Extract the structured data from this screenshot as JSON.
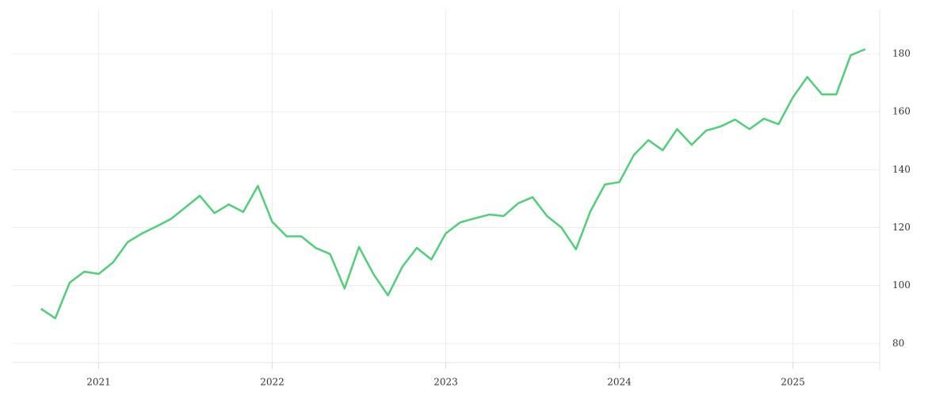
{
  "chart_data": {
    "type": "line",
    "x": [
      2020.667,
      2020.75,
      2020.833,
      2020.917,
      2021,
      2021.083,
      2021.167,
      2021.25,
      2021.333,
      2021.417,
      2021.5,
      2021.583,
      2021.667,
      2021.75,
      2021.833,
      2021.917,
      2022,
      2022.083,
      2022.167,
      2022.25,
      2022.333,
      2022.417,
      2022.5,
      2022.583,
      2022.667,
      2022.75,
      2022.833,
      2022.917,
      2023,
      2023.083,
      2023.167,
      2023.25,
      2023.333,
      2023.417,
      2023.5,
      2023.583,
      2023.667,
      2023.75,
      2023.833,
      2023.917,
      2024,
      2024.083,
      2024.167,
      2024.25,
      2024.333,
      2024.417,
      2024.5,
      2024.583,
      2024.667,
      2024.75,
      2024.833,
      2024.917,
      2025,
      2025.083,
      2025.167,
      2025.25,
      2025.333,
      2025.417
    ],
    "series": [
      {
        "color": "#4fcf78",
        "values": [
          92,
          88.7,
          101,
          104.8,
          104,
          108,
          115,
          118,
          120.4,
          123,
          127,
          131,
          125,
          128,
          125.4,
          134.4,
          122,
          117,
          117,
          113,
          110.9,
          99,
          113.3,
          104,
          96.6,
          106.5,
          113,
          109,
          118,
          121.8,
          123.2,
          124.5,
          124,
          128.4,
          130.5,
          124,
          120,
          112.5,
          125.6,
          134.9,
          135.7,
          145,
          150.2,
          146.7,
          154,
          148.6,
          153.5,
          154.9,
          157.3,
          154,
          157.6,
          155.7,
          165,
          172,
          166,
          166,
          179.5,
          181.6
        ]
      }
    ],
    "xlim": [
      2020.5,
      2025.5
    ],
    "xticks": [
      2021,
      2022,
      2023,
      2024,
      2025
    ],
    "ylim": [
      73.4,
      195.3
    ],
    "yticks": [
      80,
      100,
      120,
      140,
      160,
      180
    ],
    "grid": true
  }
}
